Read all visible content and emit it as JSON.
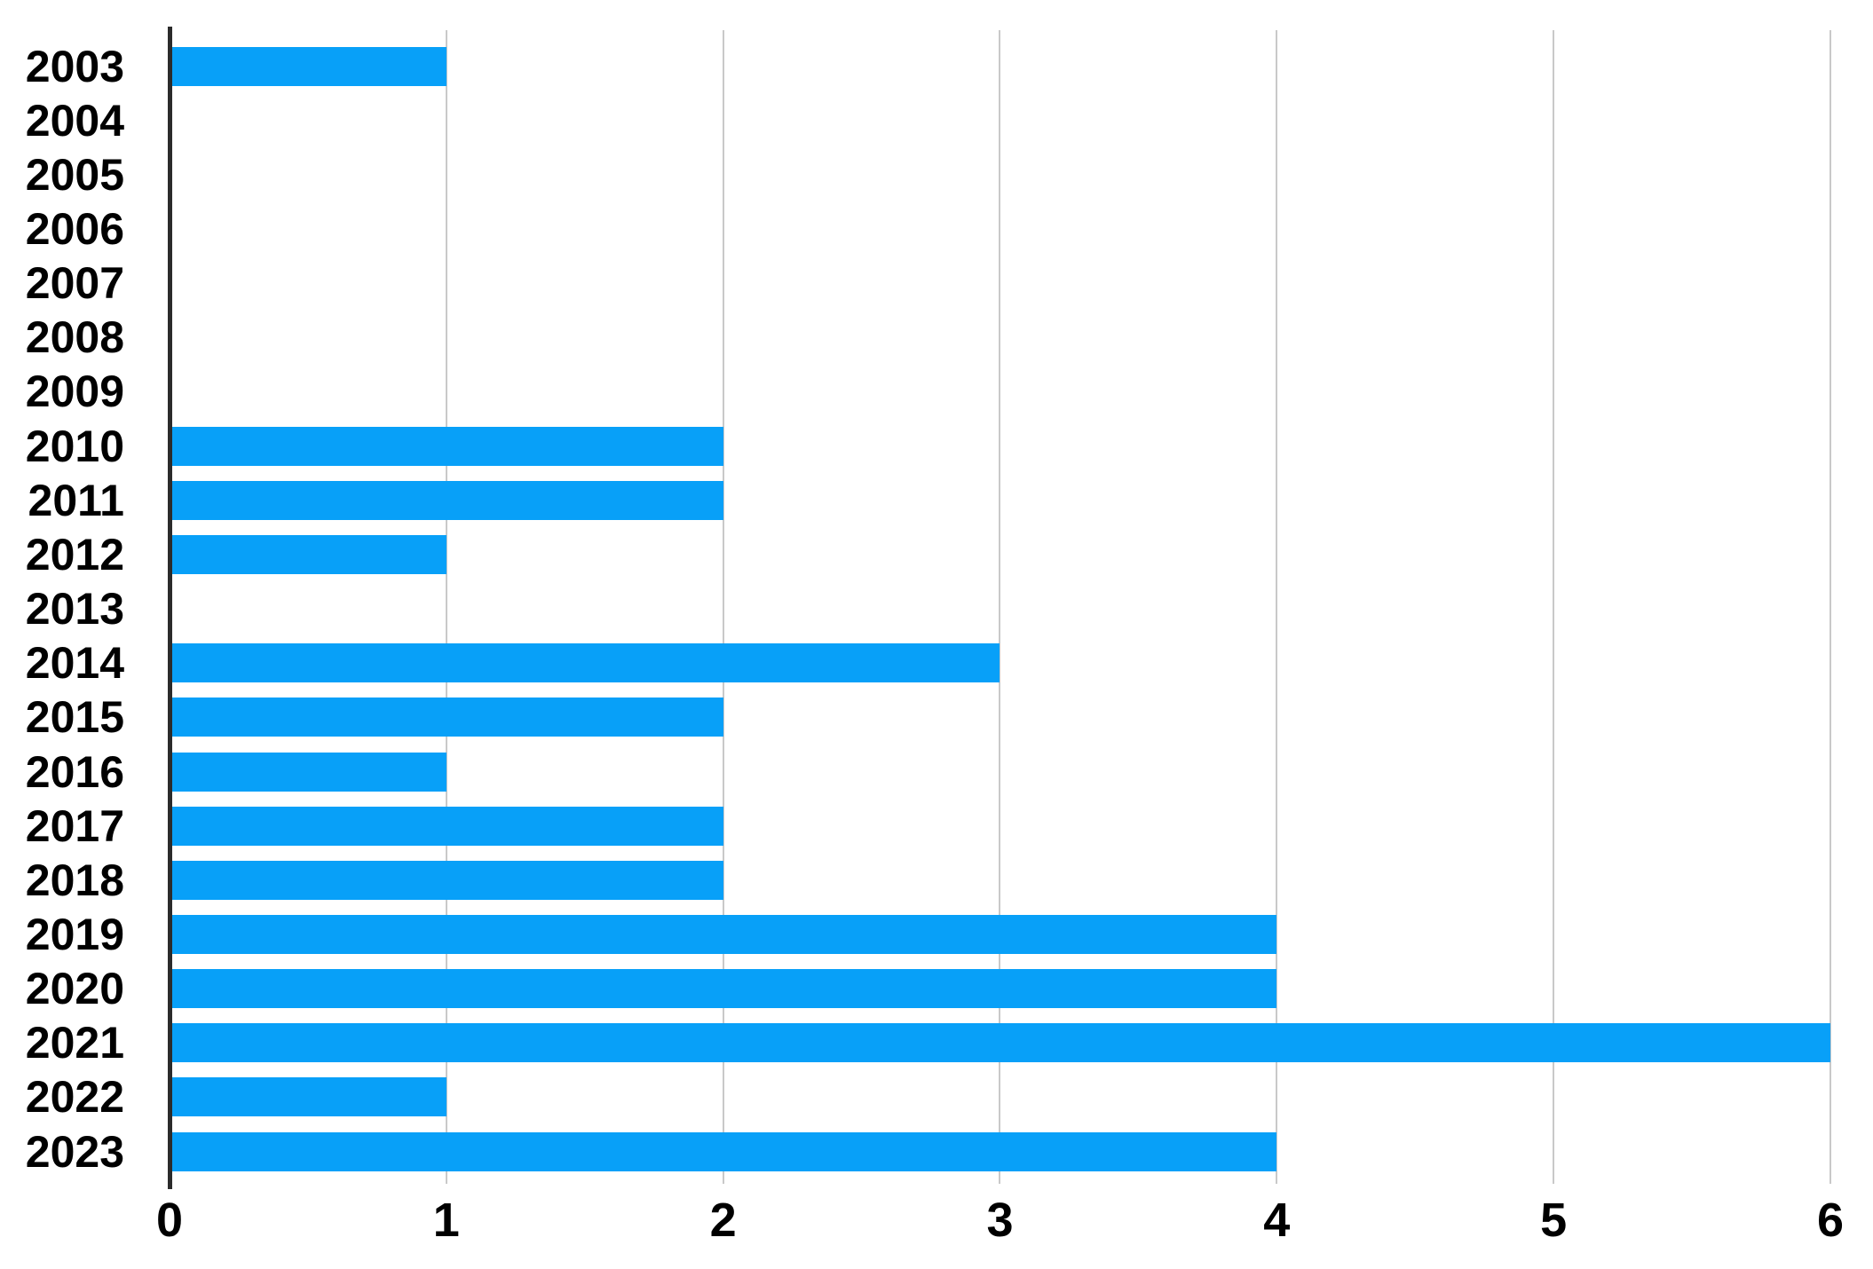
{
  "chart_data": {
    "type": "bar",
    "orientation": "horizontal",
    "title": "",
    "xlabel": "",
    "ylabel": "",
    "categories": [
      "2003",
      "2004",
      "2005",
      "2006",
      "2007",
      "2008",
      "2009",
      "2010",
      "2011",
      "2012",
      "2013",
      "2014",
      "2015",
      "2016",
      "2017",
      "2018",
      "2019",
      "2020",
      "2021",
      "2022",
      "2023"
    ],
    "values": [
      1,
      0,
      0,
      0,
      0,
      0,
      0,
      2,
      2,
      1,
      0,
      3,
      2,
      1,
      2,
      2,
      4,
      4,
      6,
      1,
      4
    ],
    "xlim": [
      0,
      6
    ],
    "xticks": [
      0,
      1,
      2,
      3,
      4,
      5,
      6
    ],
    "grid": "vertical-only",
    "legend": "none",
    "colors": {
      "bar": "#08A0F8",
      "gridline": "#C9C9C9",
      "axis": "#2B2B2B",
      "label_text": "#000000",
      "background": "#FFFFFF"
    }
  }
}
